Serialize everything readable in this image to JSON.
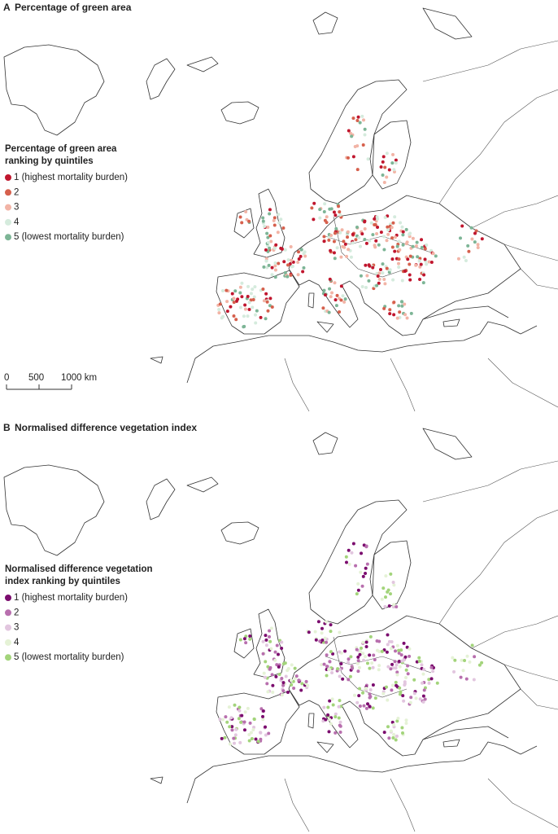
{
  "panels": [
    {
      "label": "A",
      "title": "Percentage of green area",
      "legend": {
        "title_lines": [
          "Percentage of green area",
          "ranking by quintiles"
        ],
        "items": [
          {
            "label": "1 (highest mortality burden)",
            "color": "#c0162e"
          },
          {
            "label": "2",
            "color": "#d6604d"
          },
          {
            "label": "3",
            "color": "#f2b4a6"
          },
          {
            "label": "4",
            "color": "#d5ebdd"
          },
          {
            "label": "5 (lowest mortality burden)",
            "color": "#7db596"
          }
        ]
      },
      "scale_bar": [
        "0",
        "500",
        "1000 km"
      ]
    },
    {
      "label": "B",
      "title": "Normalised difference vegetation index",
      "legend": {
        "title_lines": [
          "Normalised difference vegetation",
          "index ranking by quintiles"
        ],
        "items": [
          {
            "label": "1 (highest mortality burden)",
            "color": "#7b0c6e"
          },
          {
            "label": "2",
            "color": "#b86fae"
          },
          {
            "label": "3",
            "color": "#e2c6df"
          },
          {
            "label": "4",
            "color": "#e5f2d6"
          },
          {
            "label": "5 (lowest mortality burden)",
            "color": "#a3d47b"
          }
        ]
      }
    }
  ]
}
